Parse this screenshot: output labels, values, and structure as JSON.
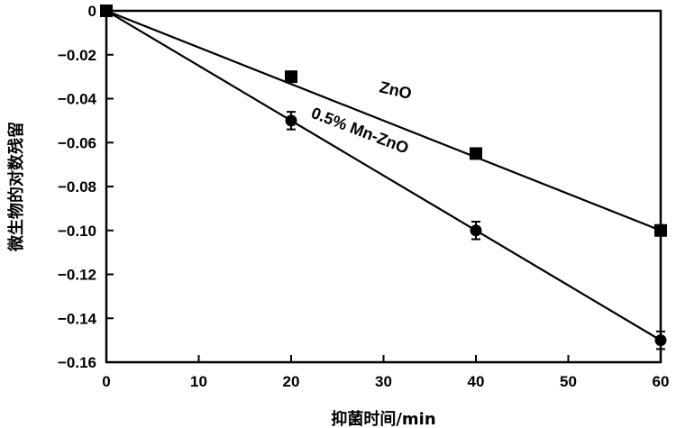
{
  "chart_data": {
    "type": "scatter",
    "title": "",
    "xlabel": "抑菌时间/min",
    "ylabel": "微生物的对数残留",
    "xlim": [
      0,
      60
    ],
    "ylim": [
      -0.16,
      0
    ],
    "xticks": [
      0,
      10,
      20,
      30,
      40,
      50,
      60
    ],
    "xtick_labels": [
      "0",
      "10",
      "20",
      "30",
      "40",
      "50",
      "60"
    ],
    "yticks": [
      0,
      -0.02,
      -0.04,
      -0.06,
      -0.08,
      -0.1,
      -0.12,
      -0.14,
      -0.16
    ],
    "ytick_labels": [
      "0",
      "−0.02",
      "−0.04",
      "−0.06",
      "−0.08",
      "−0.10",
      "−0.12",
      "−0.14",
      "−0.16"
    ],
    "grid": false,
    "legend": "none",
    "series": [
      {
        "name": "ZnO",
        "marker": "square",
        "x": [
          0,
          20,
          40,
          60
        ],
        "y": [
          0,
          -0.03,
          -0.065,
          -0.1
        ],
        "fit": [
          [
            0,
            0
          ],
          [
            60,
            -0.1
          ]
        ],
        "label_rotation": 13
      },
      {
        "name": "0.5% Mn-ZnO",
        "marker": "circle",
        "x": [
          0,
          20,
          40,
          60
        ],
        "y": [
          0,
          -0.05,
          -0.1,
          -0.15
        ],
        "error": [
          0,
          0.004,
          0.004,
          0.004
        ],
        "fit": [
          [
            0,
            0
          ],
          [
            60,
            -0.15
          ]
        ],
        "label_rotation": 21
      }
    ]
  }
}
